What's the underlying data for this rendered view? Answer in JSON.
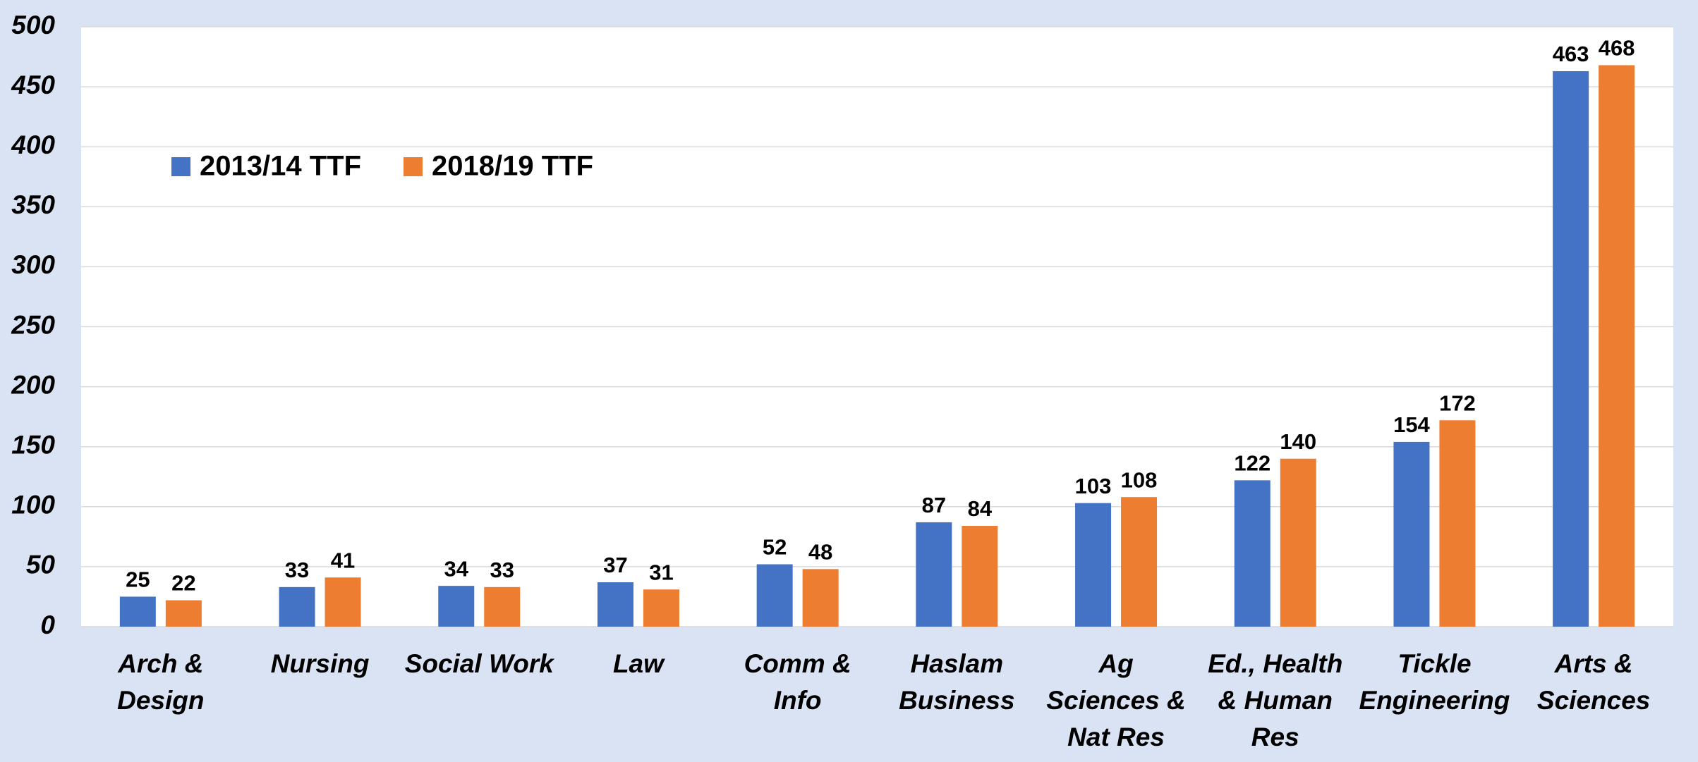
{
  "chart_data": {
    "type": "bar",
    "categories": [
      "Arch & Design",
      "Nursing",
      "Social Work",
      "Law",
      "Comm & Info",
      "Haslam Business",
      "Ag Sciences & Nat Res",
      "Ed., Health & Human Res",
      "Tickle Engineering",
      "Arts & Sciences"
    ],
    "series": [
      {
        "name": "2013/14 TTF",
        "color": "#4472c4",
        "values": [
          25,
          33,
          34,
          37,
          52,
          87,
          103,
          122,
          154,
          463
        ]
      },
      {
        "name": "2018/19 TTF",
        "color": "#ed7d31",
        "values": [
          22,
          41,
          33,
          31,
          48,
          84,
          108,
          140,
          172,
          468
        ]
      }
    ],
    "ylim": [
      0,
      500
    ],
    "yticks": [
      0,
      50,
      100,
      150,
      200,
      250,
      300,
      350,
      400,
      450,
      500
    ],
    "grid": true,
    "legend": "top-left"
  }
}
